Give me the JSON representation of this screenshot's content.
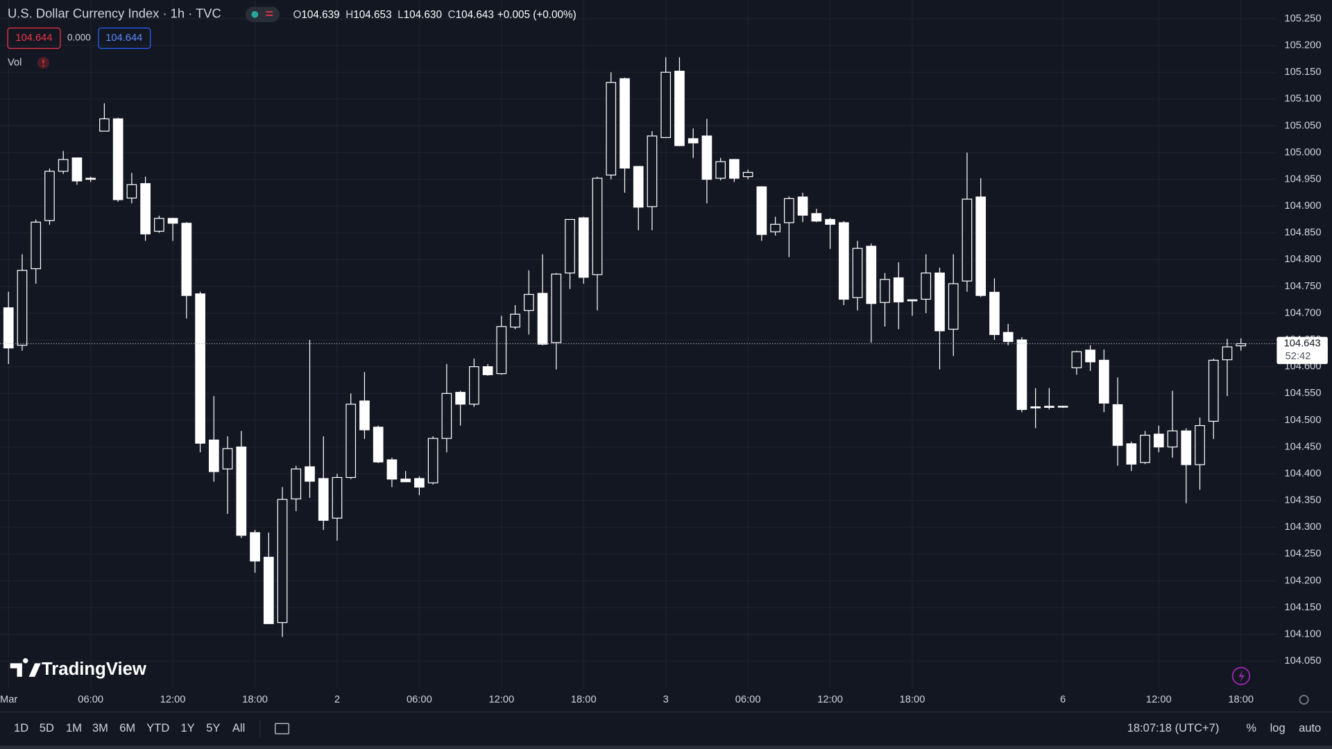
{
  "header": {
    "symbol_title": "U.S. Dollar Currency Index · 1h · TVC",
    "ohlc": [
      {
        "key": "O",
        "value": "104.639"
      },
      {
        "key": "H",
        "value": "104.653"
      },
      {
        "key": "L",
        "value": "104.630"
      },
      {
        "key": "C",
        "value": "104.643"
      }
    ],
    "change": "+0.005 (+0.00%)",
    "sell_price": "104.644",
    "spread": "0.000",
    "buy_price": "104.644",
    "volume_label": "Vol"
  },
  "chart_data": {
    "type": "candlestick",
    "categories": [
      "Mar",
      null,
      null,
      null,
      null,
      null,
      "06:00",
      null,
      null,
      null,
      null,
      null,
      "12:00",
      null,
      null,
      null,
      null,
      null,
      "18:00",
      null,
      null,
      null,
      null,
      null,
      "2",
      null,
      null,
      null,
      null,
      null,
      "06:00",
      null,
      null,
      null,
      null,
      null,
      "12:00",
      null,
      null,
      null,
      null,
      null,
      "18:00",
      null,
      null,
      null,
      null,
      null,
      "3",
      null,
      null,
      null,
      null,
      null,
      "06:00",
      null,
      null,
      null,
      null,
      null,
      "12:00",
      null,
      null,
      null,
      null,
      null,
      "18:00",
      null,
      null,
      null,
      null,
      null,
      null,
      null,
      null,
      null,
      null,
      "6",
      null,
      null,
      null,
      null,
      null,
      null,
      "12:00",
      null,
      null,
      null,
      null,
      null,
      "18:00"
    ],
    "open": [
      104.71,
      104.64,
      104.783,
      104.873,
      104.965,
      104.99,
      104.952,
      105.04,
      105.063,
      104.915,
      104.942,
      104.853,
      104.877,
      104.868,
      104.736,
      104.463,
      104.409,
      104.45,
      104.29,
      104.244,
      104.122,
      104.353,
      104.413,
      104.391,
      104.317,
      104.393,
      104.536,
      104.487,
      104.426,
      104.39,
      104.391,
      104.383,
      104.466,
      104.552,
      104.53,
      104.6,
      104.587,
      104.674,
      104.705,
      104.737,
      104.645,
      104.775,
      104.878,
      104.772,
      104.958,
      105.138,
      104.974,
      104.899,
      105.028,
      105.152,
      105.026,
      105.031,
      104.952,
      104.987,
      104.955,
      104.936,
      104.852,
      104.869,
      104.917,
      104.886,
      104.875,
      104.869,
      104.729,
      104.825,
      104.72,
      104.766,
      104.725,
      104.726,
      104.775,
      104.67,
      104.76,
      104.917,
      104.739,
      104.664,
      104.65,
      104.525,
      104.526,
      104.526,
      104.598,
      104.631,
      104.612,
      104.529,
      104.456,
      104.421,
      104.474,
      104.45,
      104.48,
      104.417,
      104.498,
      104.613,
      104.639
    ],
    "high": [
      104.74,
      104.81,
      104.875,
      104.97,
      105.003,
      104.99,
      104.955,
      105.092,
      105.065,
      104.962,
      104.955,
      104.882,
      104.878,
      104.87,
      104.74,
      104.545,
      104.47,
      104.48,
      104.295,
      104.29,
      104.375,
      104.415,
      104.65,
      104.47,
      104.4,
      104.55,
      104.59,
      104.49,
      104.43,
      104.405,
      104.395,
      104.47,
      104.605,
      104.555,
      104.615,
      104.605,
      104.695,
      104.715,
      104.78,
      104.81,
      104.775,
      104.875,
      104.88,
      104.955,
      105.15,
      105.14,
      104.975,
      105.04,
      105.178,
      105.178,
      105.045,
      105.063,
      104.99,
      104.988,
      104.968,
      104.937,
      104.88,
      104.918,
      104.925,
      104.895,
      104.878,
      104.872,
      104.835,
      104.83,
      104.775,
      104.795,
      104.725,
      104.81,
      104.785,
      104.81,
      105.0,
      104.952,
      104.765,
      104.68,
      104.655,
      104.56,
      104.56,
      104.527,
      104.63,
      104.64,
      104.632,
      104.58,
      104.46,
      104.48,
      104.49,
      104.555,
      104.485,
      104.505,
      104.615,
      104.652,
      104.653
    ],
    "low": [
      104.605,
      104.63,
      104.755,
      104.865,
      104.96,
      104.94,
      104.945,
      105.04,
      104.908,
      104.905,
      104.835,
      104.85,
      104.835,
      104.69,
      104.44,
      104.385,
      104.325,
      104.28,
      104.215,
      104.12,
      104.095,
      104.33,
      104.355,
      104.295,
      104.275,
      104.39,
      104.465,
      104.42,
      104.375,
      104.385,
      104.36,
      104.38,
      104.44,
      104.49,
      104.525,
      104.583,
      104.585,
      104.67,
      104.66,
      104.64,
      104.595,
      104.745,
      104.755,
      104.705,
      104.95,
      104.925,
      104.855,
      104.855,
      105.03,
      105.012,
      104.99,
      104.905,
      104.948,
      104.945,
      104.95,
      104.835,
      104.845,
      104.805,
      104.87,
      104.87,
      104.82,
      104.715,
      104.705,
      104.645,
      104.675,
      104.67,
      104.695,
      104.7,
      104.595,
      104.62,
      104.74,
      104.73,
      104.65,
      104.64,
      104.515,
      104.485,
      104.52,
      104.523,
      104.585,
      104.592,
      104.515,
      104.415,
      104.405,
      104.418,
      104.44,
      104.43,
      104.345,
      104.37,
      104.465,
      104.545,
      104.63
    ],
    "close": [
      104.635,
      104.78,
      104.87,
      104.965,
      104.987,
      104.947,
      104.95,
      105.063,
      104.912,
      104.94,
      104.848,
      104.877,
      104.868,
      104.733,
      104.457,
      104.404,
      104.447,
      104.285,
      104.237,
      104.12,
      104.352,
      104.409,
      104.386,
      104.313,
      104.393,
      104.53,
      104.482,
      104.422,
      104.39,
      104.385,
      104.375,
      104.466,
      104.55,
      104.53,
      104.6,
      104.585,
      104.675,
      104.698,
      104.735,
      104.642,
      104.773,
      104.875,
      104.767,
      104.952,
      105.131,
      104.971,
      104.898,
      105.031,
      105.15,
      105.013,
      105.018,
      104.95,
      104.983,
      104.952,
      104.963,
      104.847,
      104.866,
      104.914,
      104.883,
      104.872,
      104.866,
      104.726,
      104.821,
      104.718,
      104.763,
      104.721,
      104.723,
      104.775,
      104.667,
      104.755,
      104.913,
      104.733,
      104.66,
      104.647,
      104.52,
      104.523,
      104.524,
      104.525,
      104.628,
      104.609,
      104.532,
      104.453,
      104.418,
      104.472,
      104.45,
      104.48,
      104.417,
      104.49,
      104.612,
      104.637,
      104.643
    ],
    "up_color": "#131722",
    "down_color": "#ffffff",
    "border_color": "#ffffff",
    "wick_color": "#ffffff",
    "ylim": [
      104.0,
      105.285
    ],
    "yticks": [
      {
        "value": 104.05,
        "label": "104.050"
      },
      {
        "value": 104.1,
        "label": "104.100"
      },
      {
        "value": 104.15,
        "label": "104.150"
      },
      {
        "value": 104.2,
        "label": "104.200"
      },
      {
        "value": 104.25,
        "label": "104.250"
      },
      {
        "value": 104.3,
        "label": "104.300"
      },
      {
        "value": 104.35,
        "label": "104.350"
      },
      {
        "value": 104.4,
        "label": "104.400"
      },
      {
        "value": 104.45,
        "label": "104.450"
      },
      {
        "value": 104.5,
        "label": "104.500"
      },
      {
        "value": 104.55,
        "label": "104.550"
      },
      {
        "value": 104.6,
        "label": "104.600"
      },
      {
        "value": 104.65,
        "label": "104.650"
      },
      {
        "value": 104.7,
        "label": "104.700"
      },
      {
        "value": 104.75,
        "label": "104.750"
      },
      {
        "value": 104.8,
        "label": "104.800"
      },
      {
        "value": 104.85,
        "label": "104.850"
      },
      {
        "value": 104.9,
        "label": "104.900"
      },
      {
        "value": 104.95,
        "label": "104.950"
      },
      {
        "value": 105.0,
        "label": "105.000"
      },
      {
        "value": 105.05,
        "label": "105.050"
      },
      {
        "value": 105.1,
        "label": "105.100"
      },
      {
        "value": 105.15,
        "label": "105.150"
      },
      {
        "value": 105.2,
        "label": "105.200"
      },
      {
        "value": 105.25,
        "label": "105.250"
      }
    ],
    "grid": true,
    "last_price": {
      "value": 104.643,
      "label": "104.643"
    },
    "countdown": "52:42"
  },
  "branding": "TradingView",
  "toolbar": {
    "ranges": [
      "1D",
      "5D",
      "1M",
      "3M",
      "6M",
      "YTD",
      "1Y",
      "5Y",
      "All"
    ],
    "clock": "18:07:18 (UTC+7)",
    "options": [
      "%",
      "log",
      "auto"
    ]
  }
}
